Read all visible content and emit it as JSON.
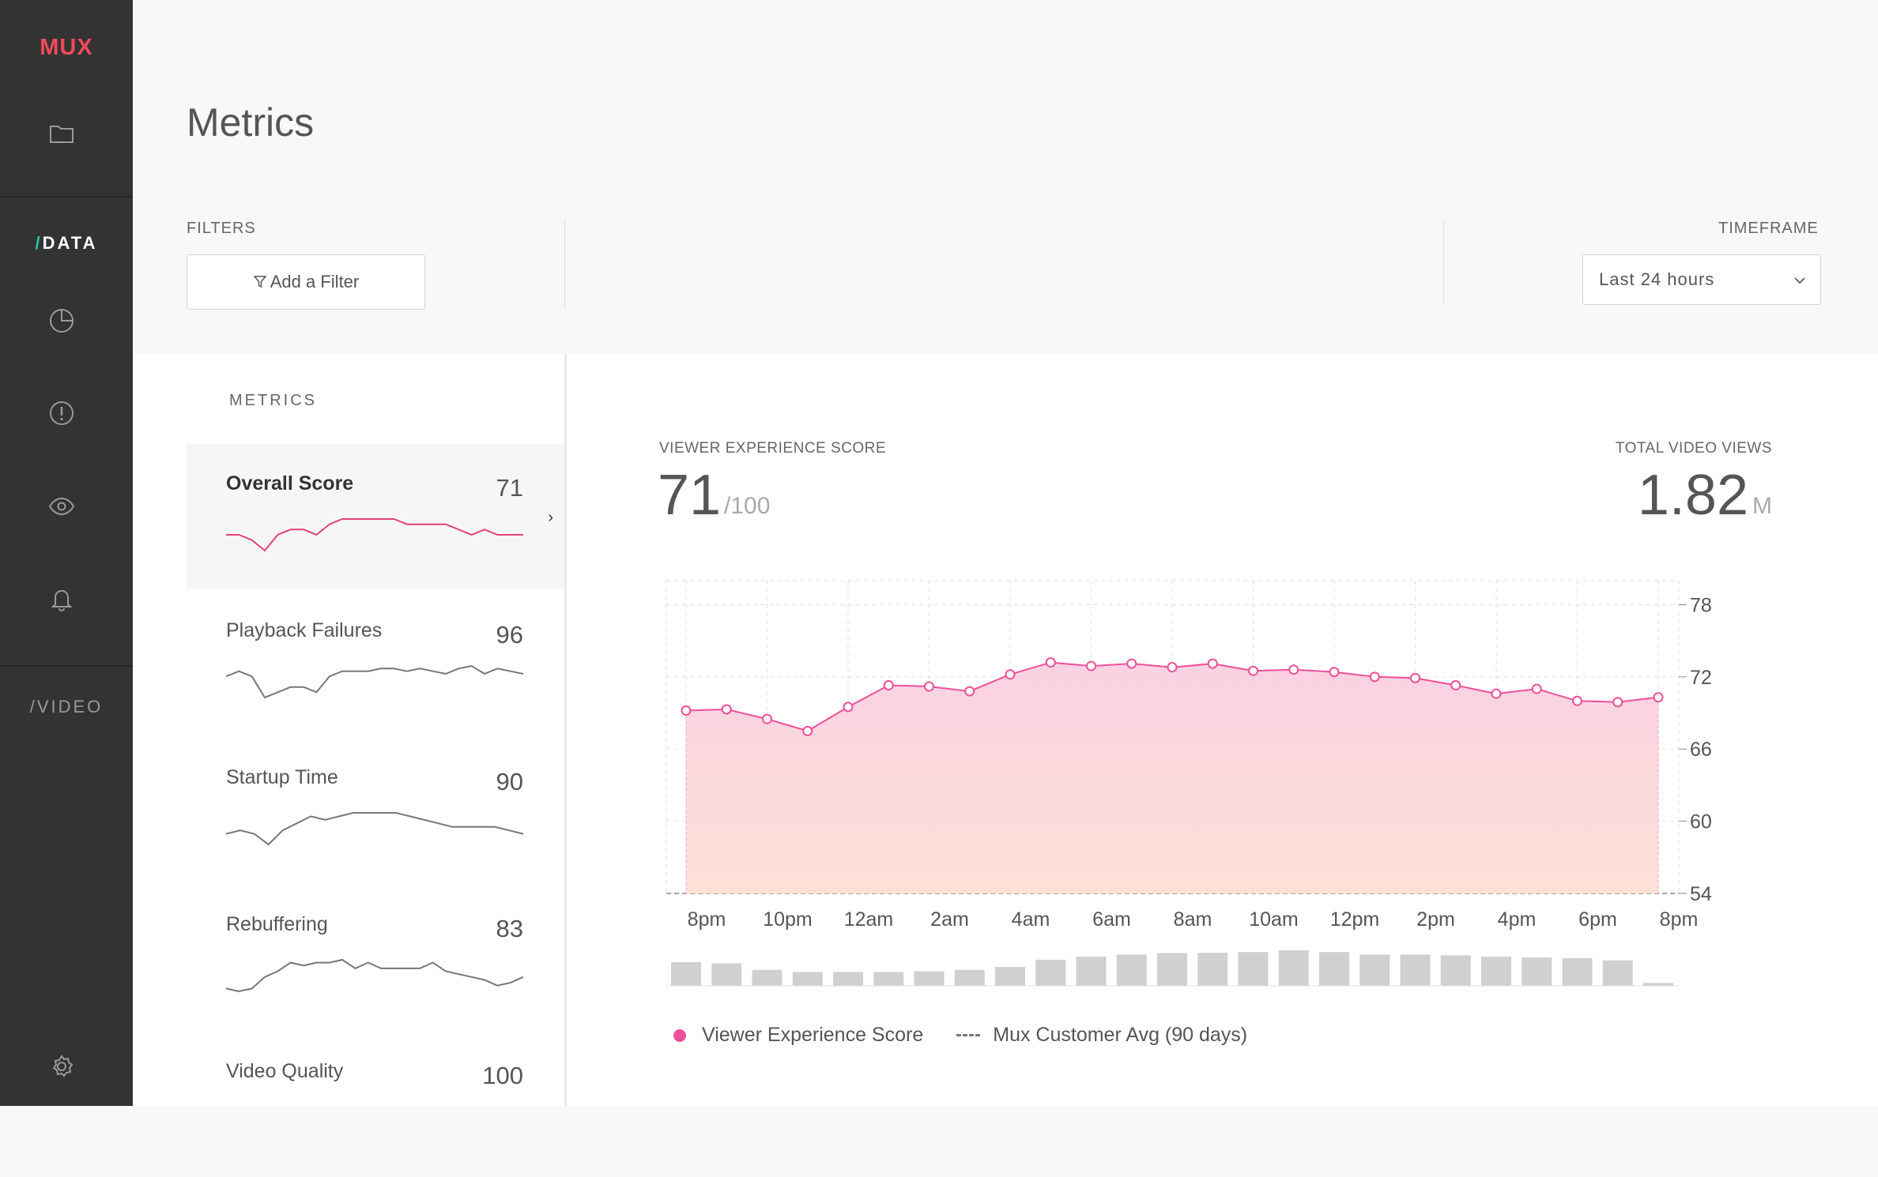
{
  "sidebar": {
    "logo": "MUX",
    "icons": [
      "folder-icon",
      "pie-chart-icon",
      "alert-icon",
      "eye-icon",
      "bell-icon",
      "gear-icon"
    ],
    "data_section": {
      "slash": "/",
      "label": "DATA"
    },
    "video_section": {
      "slash": "/",
      "label": "VIDEO"
    }
  },
  "header": {
    "title": "Metrics",
    "filters_label": "FILTERS",
    "add_filter_label": "Add a Filter",
    "timeframe_label": "TIMEFRAME",
    "timeframe_value": "Last 24 hours"
  },
  "metrics_list": {
    "heading": "METRICS",
    "items": [
      {
        "name": "Overall Score",
        "score": "71",
        "selected": true,
        "color": "#e0407e",
        "spark": [
          70,
          70,
          69,
          67,
          70,
          71,
          71,
          70,
          72,
          73,
          73,
          73,
          73,
          73,
          72,
          72,
          72,
          72,
          71,
          70,
          71,
          70,
          70,
          70
        ]
      },
      {
        "name": "Playback Failures",
        "score": "96",
        "selected": false,
        "color": "#777777",
        "spark": [
          95,
          96,
          95,
          91,
          92,
          93,
          93,
          92,
          95,
          96,
          96,
          96,
          96.5,
          96.5,
          96,
          96.5,
          96,
          95.5,
          96.5,
          97,
          95.5,
          96.5,
          96,
          95.5
        ]
      },
      {
        "name": "Startup Time",
        "score": "90",
        "selected": false,
        "color": "#777777",
        "spark": [
          88,
          88.5,
          88,
          86.5,
          88.5,
          89.5,
          90.5,
          90,
          90.5,
          91,
          91,
          91,
          91,
          90.5,
          90,
          89.5,
          89,
          89,
          89,
          89,
          88.5,
          88
        ]
      },
      {
        "name": "Rebuffering",
        "score": "83",
        "selected": false,
        "color": "#777777",
        "spark": [
          78,
          77.5,
          78,
          80,
          81,
          82.5,
          82,
          82.5,
          82.5,
          83,
          81.5,
          82.5,
          81.5,
          81.5,
          81.5,
          81.5,
          82.5,
          81,
          80.5,
          80,
          79.5,
          78.5,
          79,
          80
        ]
      },
      {
        "name": "Video Quality",
        "score": "100",
        "selected": false,
        "color": "#777777",
        "spark": []
      }
    ]
  },
  "summary": {
    "score_label": "VIEWER EXPERIENCE SCORE",
    "score_value": "71",
    "score_denominator": "/100",
    "views_label": "TOTAL VIDEO VIEWS",
    "views_value": "1.82",
    "views_unit": "M"
  },
  "chart_data": {
    "type": "area",
    "x_tick_labels": [
      "8pm",
      "10pm",
      "12am",
      "2am",
      "4am",
      "6am",
      "8am",
      "10am",
      "12pm",
      "2pm",
      "4pm",
      "6pm",
      "8pm"
    ],
    "y_tick_labels": [
      "78",
      "72",
      "66",
      "60",
      "54"
    ],
    "ylim": [
      54,
      80
    ],
    "grid": true,
    "series": [
      {
        "name": "Viewer Experience Score",
        "color": "#ee4f9a",
        "values": [
          69.2,
          69.3,
          68.5,
          67.5,
          69.5,
          71.3,
          71.2,
          70.8,
          72.2,
          73.2,
          72.9,
          73.1,
          72.8,
          73.1,
          72.5,
          72.6,
          72.4,
          72.0,
          71.9,
          71.3,
          70.6,
          71.0,
          70.0,
          69.9,
          70.3
        ]
      }
    ],
    "reference_line": {
      "name": "Mux Customer Avg (90 days)",
      "style": "dashed"
    },
    "view_volume_bars": [
      0.65,
      0.62,
      0.44,
      0.38,
      0.38,
      0.38,
      0.4,
      0.44,
      0.52,
      0.72,
      0.8,
      0.86,
      0.9,
      0.91,
      0.93,
      0.98,
      0.93,
      0.86,
      0.86,
      0.84,
      0.8,
      0.78,
      0.76,
      0.7,
      0.08
    ],
    "fill_gradient": [
      "#fbd1e3",
      "#fde1d6"
    ]
  },
  "legend": {
    "score_label": "Viewer Experience Score",
    "avg_label": "Mux Customer Avg (90 days)"
  }
}
